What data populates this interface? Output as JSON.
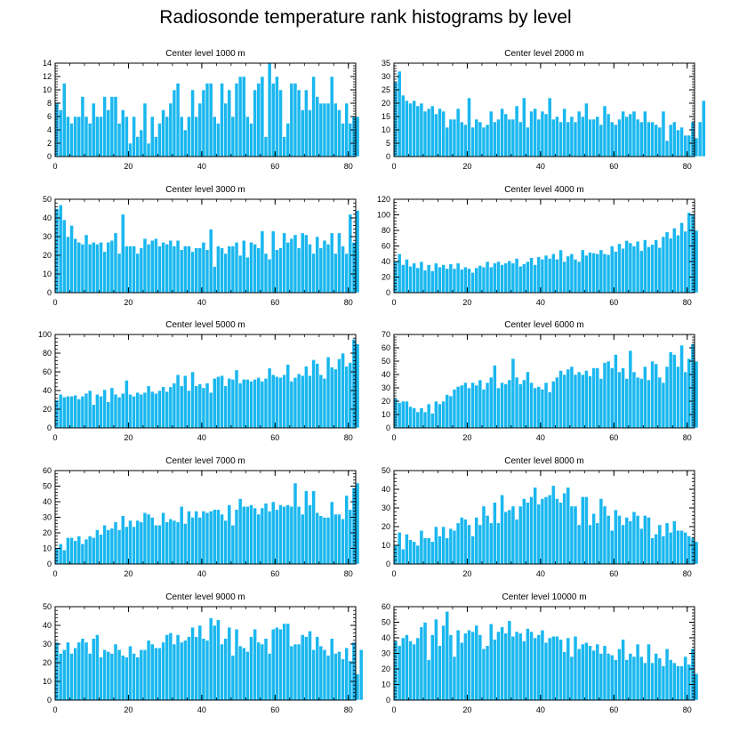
{
  "figure": {
    "title": "Radiosonde temperature rank histograms by level"
  },
  "style": {
    "bar_color": "#1ab7ef",
    "bar_edge": "#ffffff",
    "axis_color": "#000000"
  },
  "chart_data": [
    {
      "type": "bar",
      "title": "Center level 1000 m",
      "xlim": [
        0,
        82
      ],
      "ylim": [
        0,
        14
      ],
      "xticks": [
        0,
        20,
        40,
        60,
        80
      ],
      "yticks": [
        0,
        2,
        4,
        6,
        8,
        10,
        12,
        14
      ],
      "values": [
        8,
        7,
        11,
        6,
        5,
        6,
        6,
        9,
        6,
        5,
        8,
        6,
        6,
        9,
        7,
        9,
        9,
        5,
        7,
        6,
        2,
        6,
        3,
        4,
        8,
        2,
        6,
        3,
        5,
        7,
        6,
        8,
        10,
        11,
        6,
        4,
        6,
        10,
        6,
        8,
        10,
        11,
        11,
        6,
        5,
        11,
        8,
        10,
        6,
        11,
        12,
        12,
        6,
        5,
        10,
        11,
        12,
        3,
        14,
        11,
        12,
        10,
        3,
        5,
        11,
        11,
        10,
        7,
        10,
        7,
        12,
        9,
        8,
        8,
        8,
        12,
        8,
        7,
        5,
        8,
        5,
        6,
        6
      ]
    },
    {
      "type": "bar",
      "title": "Center level 2000 m",
      "xlim": [
        0,
        82
      ],
      "ylim": [
        0,
        35
      ],
      "xticks": [
        0,
        20,
        40,
        60,
        80
      ],
      "yticks": [
        0,
        5,
        10,
        15,
        20,
        25,
        30,
        35
      ],
      "values": [
        28,
        32,
        23,
        21,
        20,
        21,
        19,
        20,
        17,
        18,
        19,
        16,
        18,
        17,
        11,
        14,
        14,
        18,
        13,
        12,
        22,
        11,
        14,
        13,
        11,
        12,
        17,
        13,
        14,
        18,
        16,
        14,
        14,
        19,
        13,
        22,
        11,
        17,
        18,
        14,
        17,
        16,
        22,
        14,
        15,
        13,
        18,
        13,
        15,
        13,
        17,
        15,
        20,
        14,
        14,
        15,
        12,
        19,
        16,
        13,
        12,
        14,
        17,
        15,
        16,
        17,
        14,
        13,
        17,
        13,
        13,
        12,
        11,
        17,
        6,
        12,
        13,
        10,
        11,
        8,
        8,
        13,
        7,
        13,
        21
      ]
    },
    {
      "type": "bar",
      "title": "Center level 3000 m",
      "xlim": [
        0,
        82
      ],
      "ylim": [
        0,
        50
      ],
      "xticks": [
        0,
        20,
        40,
        60,
        80
      ],
      "yticks": [
        0,
        10,
        20,
        30,
        40,
        50
      ],
      "values": [
        45,
        47,
        39,
        30,
        36,
        29,
        27,
        26,
        31,
        26,
        27,
        26,
        27,
        22,
        27,
        28,
        32,
        21,
        42,
        25,
        25,
        25,
        21,
        24,
        29,
        26,
        28,
        29,
        25,
        27,
        26,
        28,
        25,
        28,
        23,
        25,
        25,
        22,
        24,
        24,
        27,
        23,
        34,
        14,
        25,
        24,
        21,
        25,
        25,
        27,
        20,
        28,
        19,
        27,
        26,
        24,
        33,
        21,
        18,
        33,
        23,
        24,
        32,
        27,
        29,
        31,
        24,
        32,
        31,
        26,
        21,
        30,
        24,
        28,
        26,
        32,
        21,
        32,
        25,
        21,
        42,
        27,
        44
      ]
    },
    {
      "type": "bar",
      "title": "Center level 4000 m",
      "xlim": [
        0,
        82
      ],
      "ylim": [
        0,
        120
      ],
      "xticks": [
        0,
        20,
        40,
        60,
        80
      ],
      "yticks": [
        0,
        20,
        40,
        60,
        80,
        100,
        120
      ],
      "values": [
        40,
        50,
        36,
        43,
        34,
        38,
        32,
        40,
        29,
        36,
        28,
        38,
        33,
        36,
        31,
        37,
        31,
        38,
        30,
        33,
        31,
        26,
        32,
        35,
        33,
        40,
        33,
        38,
        40,
        36,
        38,
        41,
        38,
        44,
        34,
        37,
        40,
        45,
        36,
        46,
        43,
        48,
        44,
        50,
        43,
        55,
        40,
        47,
        50,
        43,
        40,
        55,
        48,
        52,
        51,
        50,
        55,
        50,
        49,
        60,
        53,
        63,
        57,
        67,
        64,
        60,
        66,
        54,
        68,
        59,
        62,
        68,
        58,
        72,
        78,
        70,
        83,
        74,
        90,
        79,
        103,
        100,
        80
      ]
    },
    {
      "type": "bar",
      "title": "Center level 5000 m",
      "xlim": [
        0,
        82
      ],
      "ylim": [
        0,
        100
      ],
      "xticks": [
        0,
        20,
        40,
        60,
        80
      ],
      "yticks": [
        0,
        20,
        40,
        60,
        80,
        100
      ],
      "values": [
        30,
        36,
        33,
        34,
        34,
        35,
        31,
        34,
        37,
        40,
        25,
        36,
        34,
        41,
        28,
        43,
        36,
        33,
        37,
        51,
        36,
        34,
        38,
        36,
        38,
        45,
        39,
        37,
        40,
        44,
        39,
        44,
        48,
        57,
        45,
        56,
        40,
        60,
        45,
        47,
        43,
        48,
        38,
        53,
        55,
        56,
        45,
        53,
        52,
        62,
        48,
        52,
        52,
        50,
        52,
        54,
        50,
        53,
        64,
        57,
        55,
        54,
        57,
        68,
        50,
        54,
        58,
        56,
        66,
        56,
        73,
        69,
        57,
        53,
        76,
        65,
        63,
        74,
        80,
        66,
        70,
        95,
        90
      ]
    },
    {
      "type": "bar",
      "title": "Center level 6000 m",
      "xlim": [
        0,
        82
      ],
      "ylim": [
        0,
        70
      ],
      "xticks": [
        0,
        20,
        40,
        60,
        80
      ],
      "yticks": [
        0,
        10,
        20,
        30,
        40,
        50,
        60,
        70
      ],
      "values": [
        22,
        19,
        20,
        20,
        16,
        15,
        12,
        15,
        12,
        18,
        11,
        20,
        18,
        20,
        25,
        24,
        29,
        31,
        32,
        34,
        30,
        34,
        32,
        36,
        29,
        34,
        38,
        47,
        30,
        34,
        33,
        36,
        52,
        38,
        33,
        36,
        42,
        34,
        30,
        31,
        29,
        34,
        27,
        35,
        38,
        43,
        40,
        44,
        46,
        40,
        42,
        40,
        43,
        39,
        45,
        45,
        37,
        49,
        50,
        45,
        55,
        42,
        45,
        37,
        58,
        42,
        38,
        37,
        46,
        36,
        50,
        48,
        38,
        34,
        46,
        57,
        55,
        46,
        62,
        42,
        52,
        63,
        50
      ]
    },
    {
      "type": "bar",
      "title": "Center level 7000 m",
      "xlim": [
        0,
        82
      ],
      "ylim": [
        0,
        60
      ],
      "xticks": [
        0,
        20,
        40,
        60,
        80
      ],
      "yticks": [
        0,
        10,
        20,
        30,
        40,
        50,
        60
      ],
      "values": [
        10,
        13,
        9,
        17,
        17,
        15,
        18,
        13,
        16,
        18,
        17,
        22,
        19,
        25,
        22,
        23,
        27,
        22,
        31,
        24,
        28,
        24,
        28,
        27,
        33,
        32,
        30,
        25,
        25,
        33,
        27,
        29,
        28,
        27,
        37,
        26,
        34,
        30,
        34,
        30,
        34,
        33,
        34,
        35,
        35,
        32,
        28,
        38,
        25,
        35,
        42,
        37,
        37,
        38,
        36,
        32,
        36,
        39,
        34,
        40,
        35,
        38,
        37,
        38,
        37,
        52,
        37,
        32,
        47,
        38,
        47,
        33,
        31,
        30,
        30,
        40,
        32,
        32,
        29,
        44,
        35,
        49,
        52
      ]
    },
    {
      "type": "bar",
      "title": "Center level 8000 m",
      "xlim": [
        0,
        82
      ],
      "ylim": [
        0,
        50
      ],
      "xticks": [
        0,
        20,
        40,
        60,
        80
      ],
      "yticks": [
        0,
        10,
        20,
        30,
        40,
        50
      ],
      "values": [
        10,
        17,
        8,
        16,
        13,
        12,
        10,
        18,
        14,
        14,
        12,
        20,
        15,
        20,
        14,
        19,
        18,
        22,
        25,
        24,
        21,
        15,
        25,
        21,
        31,
        26,
        22,
        33,
        22,
        37,
        28,
        29,
        31,
        24,
        31,
        35,
        33,
        36,
        41,
        32,
        35,
        36,
        37,
        42,
        35,
        33,
        38,
        41,
        31,
        31,
        21,
        36,
        36,
        21,
        27,
        22,
        35,
        31,
        26,
        18,
        29,
        26,
        21,
        25,
        23,
        28,
        26,
        19,
        26,
        25,
        14,
        16,
        21,
        15,
        22,
        17,
        23,
        18,
        18,
        17,
        15,
        14,
        12
      ]
    },
    {
      "type": "bar",
      "title": "Center level 9000 m",
      "xlim": [
        0,
        82
      ],
      "ylim": [
        0,
        50
      ],
      "xticks": [
        0,
        20,
        40,
        60,
        80
      ],
      "yticks": [
        0,
        10,
        20,
        30,
        40,
        50
      ],
      "values": [
        31,
        25,
        27,
        31,
        25,
        28,
        31,
        33,
        31,
        25,
        33,
        35,
        23,
        27,
        26,
        25,
        30,
        27,
        24,
        23,
        29,
        25,
        23,
        27,
        27,
        32,
        30,
        28,
        28,
        31,
        35,
        36,
        30,
        35,
        31,
        32,
        34,
        39,
        34,
        40,
        33,
        32,
        44,
        40,
        43,
        30,
        33,
        39,
        24,
        38,
        29,
        28,
        26,
        34,
        38,
        31,
        30,
        33,
        25,
        38,
        39,
        38,
        41,
        41,
        29,
        30,
        30,
        35,
        34,
        37,
        27,
        34,
        29,
        27,
        24,
        33,
        25,
        26,
        22,
        28,
        21,
        31,
        14,
        27
      ]
    },
    {
      "type": "bar",
      "title": "Center level 10000 m",
      "xlim": [
        0,
        82
      ],
      "ylim": [
        0,
        60
      ],
      "xticks": [
        0,
        20,
        40,
        60,
        80
      ],
      "yticks": [
        0,
        10,
        20,
        30,
        40,
        50,
        60
      ],
      "values": [
        38,
        35,
        40,
        42,
        38,
        36,
        40,
        47,
        50,
        26,
        42,
        52,
        35,
        48,
        57,
        42,
        28,
        45,
        37,
        43,
        45,
        44,
        48,
        42,
        33,
        35,
        49,
        39,
        44,
        47,
        43,
        51,
        41,
        44,
        43,
        38,
        46,
        44,
        40,
        42,
        45,
        37,
        40,
        41,
        41,
        39,
        31,
        40,
        28,
        41,
        33,
        36,
        37,
        35,
        32,
        36,
        30,
        35,
        30,
        29,
        26,
        33,
        39,
        26,
        30,
        28,
        36,
        28,
        24,
        36,
        24,
        30,
        27,
        22,
        33,
        26,
        24,
        22,
        22,
        28,
        23,
        33,
        17
      ]
    }
  ]
}
